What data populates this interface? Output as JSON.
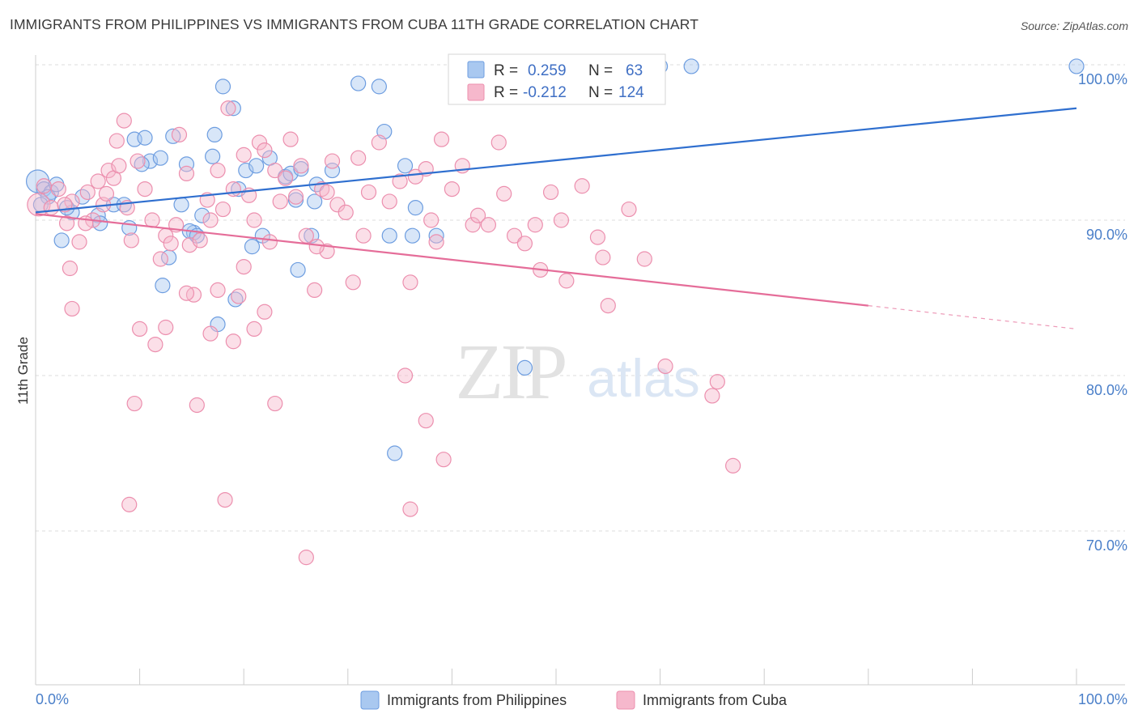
{
  "header": {
    "title": "IMMIGRANTS FROM PHILIPPINES VS IMMIGRANTS FROM CUBA 11TH GRADE CORRELATION CHART",
    "source": "Source: ZipAtlas.com"
  },
  "watermark": {
    "zip": "ZIP",
    "atlas": "atlas"
  },
  "stats_box": {
    "rows": [
      {
        "r_label": "R =",
        "r_value": "0.259",
        "n_label": "N =",
        "n_value": "63"
      },
      {
        "r_label": "R =",
        "r_value": "-0.212",
        "n_label": "N =",
        "n_value": "124"
      }
    ]
  },
  "legend": {
    "items": [
      {
        "label": "Immigrants from Philippines"
      },
      {
        "label": "Immigrants from Cuba"
      }
    ]
  },
  "colors": {
    "philippines_fill": "#a9c8f0",
    "philippines_stroke": "#6d9de0",
    "philippines_line": "#2f6fcf",
    "cuba_fill": "#f6b8cc",
    "cuba_stroke": "#ec8fae",
    "cuba_line": "#e56d99",
    "axis_text": "#4a7fc9",
    "grid": "#dddddd"
  },
  "chart_data": {
    "type": "scatter",
    "title": "IMMIGRANTS FROM PHILIPPINES VS IMMIGRANTS FROM CUBA 11TH GRADE CORRELATION CHART",
    "xlabel": "",
    "ylabel": "11th Grade",
    "xlim": [
      0,
      100
    ],
    "ylim": [
      60,
      101
    ],
    "x_tick_labels": [
      "0.0%",
      "100.0%"
    ],
    "y_ticks": [
      100,
      90,
      80,
      70
    ],
    "y_tick_labels": [
      "100.0%",
      "90.0%",
      "80.0%",
      "70.0%"
    ],
    "grid": true,
    "legend_position": "bottom",
    "series": [
      {
        "name": "Immigrants from Philippines",
        "R": 0.259,
        "N": 63,
        "trend": {
          "x": [
            0,
            100
          ],
          "y": [
            90.5,
            97.2
          ]
        },
        "points": [
          {
            "x": 0.2,
            "y": 92.5,
            "big": true
          },
          {
            "x": 0.8,
            "y": 92.0
          },
          {
            "x": 1.5,
            "y": 91.8
          },
          {
            "x": 2.0,
            "y": 92.3
          },
          {
            "x": 1.2,
            "y": 91.5
          },
          {
            "x": 3.5,
            "y": 90.5
          },
          {
            "x": 4.5,
            "y": 91.5
          },
          {
            "x": 3.0,
            "y": 90.8
          },
          {
            "x": 6.0,
            "y": 90.3
          },
          {
            "x": 7.5,
            "y": 91.0
          },
          {
            "x": 9.0,
            "y": 89.5
          },
          {
            "x": 6.2,
            "y": 89.8
          },
          {
            "x": 2.5,
            "y": 88.7
          },
          {
            "x": 8.5,
            "y": 91.0
          },
          {
            "x": 9.5,
            "y": 95.2
          },
          {
            "x": 10.5,
            "y": 95.3
          },
          {
            "x": 11.0,
            "y": 93.8
          },
          {
            "x": 12.0,
            "y": 94.0
          },
          {
            "x": 10.2,
            "y": 93.6
          },
          {
            "x": 13.2,
            "y": 95.4
          },
          {
            "x": 12.8,
            "y": 87.6
          },
          {
            "x": 14.0,
            "y": 91.0
          },
          {
            "x": 14.5,
            "y": 93.6
          },
          {
            "x": 15.2,
            "y": 89.2
          },
          {
            "x": 14.8,
            "y": 89.3
          },
          {
            "x": 15.5,
            "y": 89.0
          },
          {
            "x": 16.0,
            "y": 90.3
          },
          {
            "x": 12.2,
            "y": 85.8
          },
          {
            "x": 17.0,
            "y": 94.1
          },
          {
            "x": 17.2,
            "y": 95.5
          },
          {
            "x": 18.0,
            "y": 98.6
          },
          {
            "x": 19.0,
            "y": 97.2
          },
          {
            "x": 19.5,
            "y": 92.0
          },
          {
            "x": 20.2,
            "y": 93.2
          },
          {
            "x": 20.8,
            "y": 88.3
          },
          {
            "x": 21.2,
            "y": 93.5
          },
          {
            "x": 21.8,
            "y": 89.0
          },
          {
            "x": 22.5,
            "y": 94.0
          },
          {
            "x": 24.0,
            "y": 92.8
          },
          {
            "x": 25.0,
            "y": 91.3
          },
          {
            "x": 24.5,
            "y": 93.0
          },
          {
            "x": 25.5,
            "y": 93.3
          },
          {
            "x": 26.8,
            "y": 91.2
          },
          {
            "x": 27.0,
            "y": 92.3
          },
          {
            "x": 28.5,
            "y": 93.2
          },
          {
            "x": 25.2,
            "y": 86.8
          },
          {
            "x": 26.5,
            "y": 89.0
          },
          {
            "x": 31.0,
            "y": 98.8
          },
          {
            "x": 33.0,
            "y": 98.6
          },
          {
            "x": 33.5,
            "y": 95.7
          },
          {
            "x": 35.5,
            "y": 93.5
          },
          {
            "x": 34.0,
            "y": 89.0
          },
          {
            "x": 36.5,
            "y": 90.8
          },
          {
            "x": 36.2,
            "y": 89.0
          },
          {
            "x": 38.5,
            "y": 89.0
          },
          {
            "x": 34.5,
            "y": 75.0
          },
          {
            "x": 47.0,
            "y": 80.5
          },
          {
            "x": 60.0,
            "y": 99.9
          },
          {
            "x": 63.0,
            "y": 99.9
          },
          {
            "x": 100.0,
            "y": 99.9
          },
          {
            "x": 17.5,
            "y": 83.3
          },
          {
            "x": 19.2,
            "y": 84.9
          },
          {
            "x": 0.5,
            "y": 91.0
          }
        ]
      },
      {
        "name": "Immigrants from Cuba",
        "R": -0.212,
        "N": 124,
        "trend": {
          "x": [
            0,
            80
          ],
          "y": [
            90.4,
            84.5
          ]
        },
        "trend_dashed": {
          "x": [
            80,
            100
          ],
          "y": [
            84.5,
            83.0
          ]
        },
        "points": [
          {
            "x": 0.3,
            "y": 91.0,
            "big": true
          },
          {
            "x": 0.8,
            "y": 92.2
          },
          {
            "x": 1.5,
            "y": 90.8
          },
          {
            "x": 2.2,
            "y": 92.0
          },
          {
            "x": 3.0,
            "y": 89.8
          },
          {
            "x": 3.5,
            "y": 91.2
          },
          {
            "x": 4.2,
            "y": 88.6
          },
          {
            "x": 5.0,
            "y": 91.8
          },
          {
            "x": 5.5,
            "y": 90.0
          },
          {
            "x": 6.0,
            "y": 92.5
          },
          {
            "x": 6.5,
            "y": 91.0
          },
          {
            "x": 7.0,
            "y": 93.2
          },
          {
            "x": 7.5,
            "y": 92.7
          },
          {
            "x": 8.0,
            "y": 93.5
          },
          {
            "x": 3.3,
            "y": 86.9
          },
          {
            "x": 4.8,
            "y": 89.8
          },
          {
            "x": 7.8,
            "y": 95.1
          },
          {
            "x": 8.8,
            "y": 90.8
          },
          {
            "x": 8.5,
            "y": 96.4
          },
          {
            "x": 9.2,
            "y": 88.7
          },
          {
            "x": 9.8,
            "y": 93.8
          },
          {
            "x": 10.5,
            "y": 92.0
          },
          {
            "x": 11.2,
            "y": 90.0
          },
          {
            "x": 12.0,
            "y": 87.5
          },
          {
            "x": 12.5,
            "y": 89.0
          },
          {
            "x": 13.0,
            "y": 88.5
          },
          {
            "x": 13.8,
            "y": 95.5
          },
          {
            "x": 14.5,
            "y": 93.0
          },
          {
            "x": 14.8,
            "y": 88.4
          },
          {
            "x": 15.2,
            "y": 85.2
          },
          {
            "x": 15.8,
            "y": 88.7
          },
          {
            "x": 16.5,
            "y": 91.3
          },
          {
            "x": 16.8,
            "y": 90.0
          },
          {
            "x": 17.5,
            "y": 93.2
          },
          {
            "x": 18.0,
            "y": 90.7
          },
          {
            "x": 18.5,
            "y": 97.2
          },
          {
            "x": 19.0,
            "y": 92.0
          },
          {
            "x": 19.5,
            "y": 85.1
          },
          {
            "x": 20.0,
            "y": 94.2
          },
          {
            "x": 20.5,
            "y": 91.6
          },
          {
            "x": 21.0,
            "y": 90.0
          },
          {
            "x": 21.5,
            "y": 95.0
          },
          {
            "x": 22.0,
            "y": 94.5
          },
          {
            "x": 22.5,
            "y": 88.6
          },
          {
            "x": 23.0,
            "y": 93.2
          },
          {
            "x": 23.5,
            "y": 91.2
          },
          {
            "x": 24.0,
            "y": 92.7
          },
          {
            "x": 24.5,
            "y": 95.2
          },
          {
            "x": 25.0,
            "y": 91.5
          },
          {
            "x": 25.5,
            "y": 93.5
          },
          {
            "x": 26.0,
            "y": 89.0
          },
          {
            "x": 26.8,
            "y": 85.5
          },
          {
            "x": 27.5,
            "y": 92.0
          },
          {
            "x": 28.0,
            "y": 88.0
          },
          {
            "x": 28.5,
            "y": 93.8
          },
          {
            "x": 29.0,
            "y": 91.0
          },
          {
            "x": 29.8,
            "y": 90.5
          },
          {
            "x": 30.5,
            "y": 86.0
          },
          {
            "x": 31.0,
            "y": 94.0
          },
          {
            "x": 31.5,
            "y": 89.0
          },
          {
            "x": 32.0,
            "y": 91.8
          },
          {
            "x": 33.0,
            "y": 95.0
          },
          {
            "x": 34.0,
            "y": 91.2
          },
          {
            "x": 35.0,
            "y": 92.5
          },
          {
            "x": 36.0,
            "y": 86.0
          },
          {
            "x": 37.5,
            "y": 93.3
          },
          {
            "x": 38.0,
            "y": 90.0
          },
          {
            "x": 38.5,
            "y": 88.6
          },
          {
            "x": 39.0,
            "y": 95.2
          },
          {
            "x": 40.0,
            "y": 92.0
          },
          {
            "x": 41.0,
            "y": 93.5
          },
          {
            "x": 42.0,
            "y": 89.7
          },
          {
            "x": 42.5,
            "y": 90.3
          },
          {
            "x": 43.5,
            "y": 89.7
          },
          {
            "x": 45.0,
            "y": 91.7
          },
          {
            "x": 46.0,
            "y": 89.0
          },
          {
            "x": 47.0,
            "y": 88.5
          },
          {
            "x": 48.0,
            "y": 89.7
          },
          {
            "x": 48.5,
            "y": 86.8
          },
          {
            "x": 49.5,
            "y": 91.8
          },
          {
            "x": 50.5,
            "y": 90.0
          },
          {
            "x": 51.0,
            "y": 86.1
          },
          {
            "x": 52.5,
            "y": 92.2
          },
          {
            "x": 54.0,
            "y": 88.9
          },
          {
            "x": 54.5,
            "y": 87.6
          },
          {
            "x": 55.0,
            "y": 84.5
          },
          {
            "x": 57.0,
            "y": 90.7
          },
          {
            "x": 58.5,
            "y": 87.5
          },
          {
            "x": 60.5,
            "y": 80.6
          },
          {
            "x": 65.0,
            "y": 78.7
          },
          {
            "x": 65.5,
            "y": 79.6
          },
          {
            "x": 67.0,
            "y": 74.2
          },
          {
            "x": 3.5,
            "y": 84.3
          },
          {
            "x": 10.0,
            "y": 83.0
          },
          {
            "x": 11.5,
            "y": 82.0
          },
          {
            "x": 12.5,
            "y": 83.1
          },
          {
            "x": 14.5,
            "y": 85.3
          },
          {
            "x": 16.8,
            "y": 82.7
          },
          {
            "x": 17.5,
            "y": 85.5
          },
          {
            "x": 19.0,
            "y": 82.2
          },
          {
            "x": 21.0,
            "y": 83.0
          },
          {
            "x": 22.0,
            "y": 84.1
          },
          {
            "x": 9.5,
            "y": 78.2
          },
          {
            "x": 15.5,
            "y": 78.1
          },
          {
            "x": 23.0,
            "y": 78.2
          },
          {
            "x": 35.5,
            "y": 80.0
          },
          {
            "x": 37.5,
            "y": 77.1
          },
          {
            "x": 39.2,
            "y": 74.6
          },
          {
            "x": 9.0,
            "y": 71.7
          },
          {
            "x": 18.2,
            "y": 72.0
          },
          {
            "x": 26.0,
            "y": 68.3
          },
          {
            "x": 36.0,
            "y": 71.4
          },
          {
            "x": 28.0,
            "y": 91.8
          },
          {
            "x": 36.5,
            "y": 92.8
          },
          {
            "x": 44.5,
            "y": 95.0
          },
          {
            "x": 27.0,
            "y": 88.3
          },
          {
            "x": 20.0,
            "y": 87.0
          },
          {
            "x": 13.5,
            "y": 89.7
          },
          {
            "x": 6.8,
            "y": 91.7
          },
          {
            "x": 2.8,
            "y": 91.0
          }
        ]
      }
    ]
  }
}
